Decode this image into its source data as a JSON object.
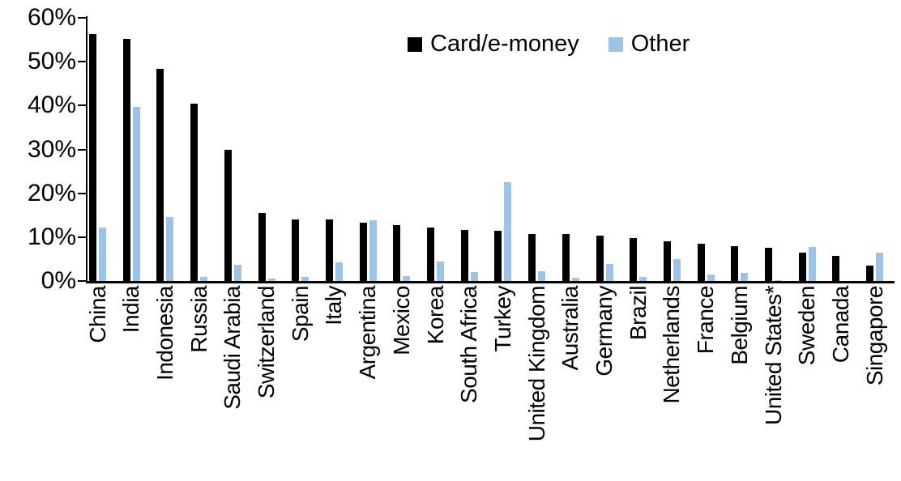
{
  "legend": {
    "items": [
      {
        "label": "Card/e-money",
        "color": "#000000"
      },
      {
        "label": "Other",
        "color": "#9DC3E6"
      }
    ]
  },
  "y_axis": {
    "tick_labels": [
      "60%",
      "50%",
      "40%",
      "30%",
      "20%",
      "10%",
      "0%"
    ]
  },
  "chart_data": {
    "type": "bar",
    "title": "",
    "xlabel": "",
    "ylabel": "",
    "ylim": [
      0,
      60
    ],
    "ytick_step": 10,
    "ytick_format": "percent",
    "grid": false,
    "legend_position": "top-center",
    "categories": [
      "China",
      "India",
      "Indonesia",
      "Russia",
      "Saudi Arabia",
      "Switzerland",
      "Spain",
      "Italy",
      "Argentina",
      "Mexico",
      "Korea",
      "South Africa",
      "Turkey",
      "United Kingdom",
      "Australia",
      "Germany",
      "Brazil",
      "Netherlands",
      "France",
      "Belgium",
      "United States*",
      "Sweden",
      "Canada",
      "Singapore"
    ],
    "series": [
      {
        "name": "Card/e-money",
        "color": "#000000",
        "values": [
          56.4,
          55.2,
          48.4,
          40.5,
          29.9,
          15.5,
          14.0,
          14.0,
          13.3,
          12.8,
          12.1,
          11.6,
          11.4,
          10.8,
          10.7,
          10.4,
          9.8,
          9.0,
          8.5,
          7.9,
          7.6,
          6.4,
          5.8,
          3.6
        ]
      },
      {
        "name": "Other",
        "color": "#9DC3E6",
        "values": [
          12.1,
          39.7,
          14.5,
          0.9,
          3.7,
          0.6,
          0.9,
          4.3,
          13.8,
          1.2,
          4.5,
          2.1,
          22.6,
          2.2,
          0.8,
          3.8,
          1.0,
          4.9,
          1.4,
          1.9,
          0.2,
          7.8,
          0,
          6.4
        ]
      }
    ]
  }
}
